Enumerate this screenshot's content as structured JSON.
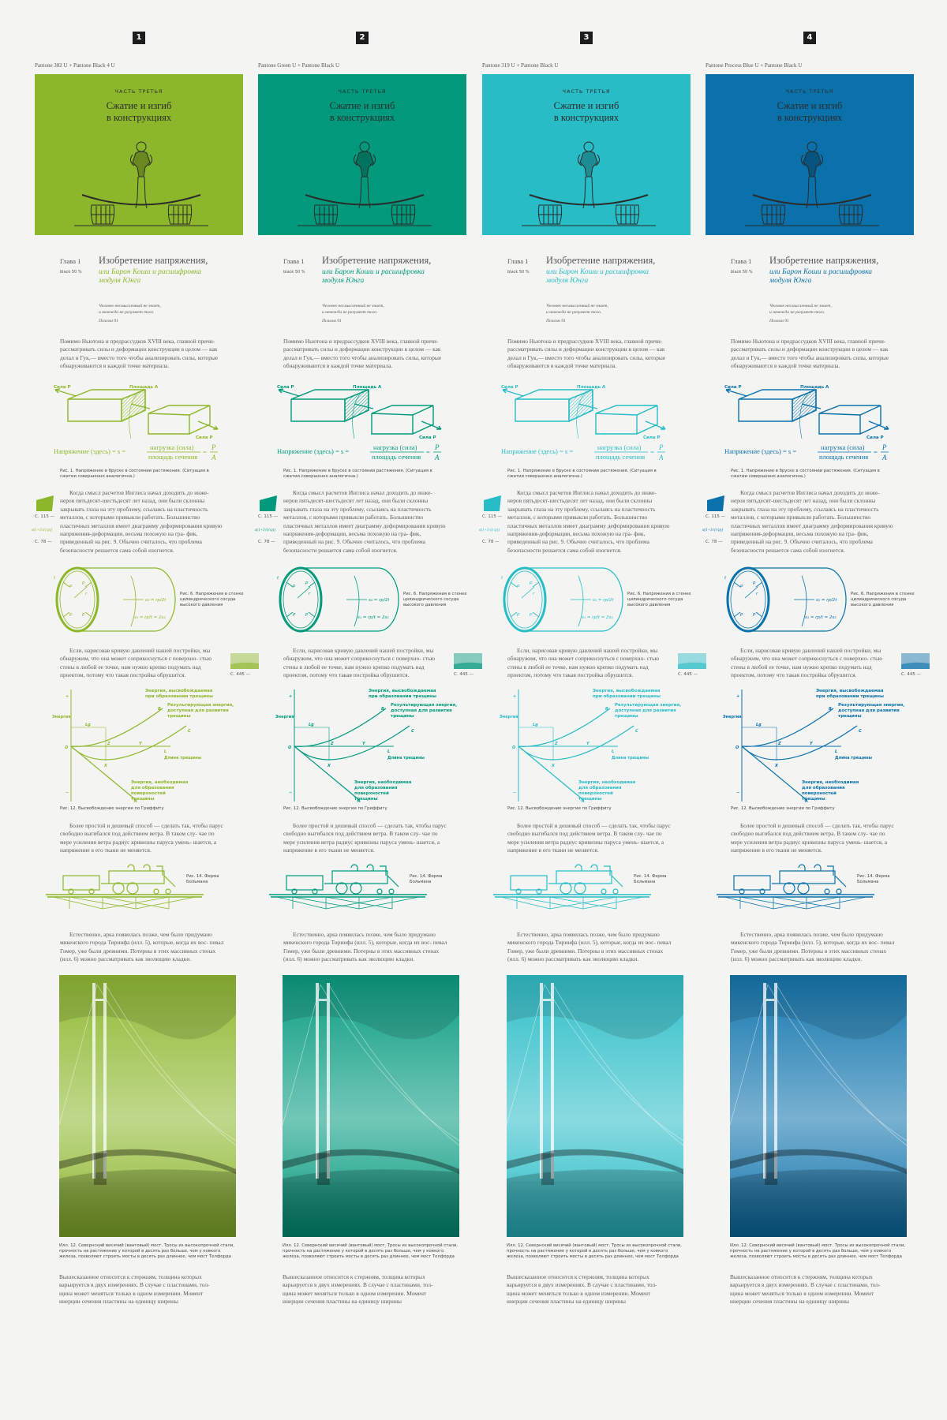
{
  "columns": [
    {
      "number": "1",
      "inks": "Pantone 382 U + Pantone Black 4 U",
      "color": "#8cb72b"
    },
    {
      "number": "2",
      "inks": "Pantone Green U + Pantone Black U",
      "color": "#00997c"
    },
    {
      "number": "3",
      "inks": "Pantone 319 U + Pantone Black U",
      "color": "#27bcc6"
    },
    {
      "number": "4",
      "inks": "Pantone Process Blue U + Pantone Black U",
      "color": "#0a71ab"
    }
  ],
  "cover": {
    "part": "ЧАСТЬ ТРЕТЬЯ",
    "title_line1": "Сжатие и изгиб",
    "title_line2": "в конструкциях"
  },
  "chapter": {
    "label": "Глава 1",
    "note": "black 50 %",
    "title": "Изобретение напряжения,",
    "subtitle": "или Барон Коши и расшифровка модуля Юнга"
  },
  "epigraph": {
    "line1": "Человек несмысленный не знает,",
    "line2": "и невежда не разумеет того.",
    "source": "Псалом 91"
  },
  "paragraphs": {
    "p1": "Помимо Ньютона и предрассудков XVIII века, главной причи- рассматривать силы и деформации конструкции в целом — как делал и Гук,— вместо того чтобы анализировать силы, которые обнаруживаются в каждой точке материала.",
    "p2": "Когда смысл расчетов Инглиса начал доходить до инже- неров пятьдесят-шестьдесят лет назад, они были склонны закрывать глаза на эту проблему, ссылаясь на пластичность металлов, с которыми привыкли работать. Большинство пластичных металлов имеет диаграмму деформирования кривую напряжения-деформации, весьма похожую на гра- фик, приведенный на рис. 9. Обычно считалось, что проблема безопасности решается сама собой изогнется.",
    "p3": "Если, нарисовав кривую давлений нашей постройки, мы обнаружим, что она может соприкоснуться с поверхно- стью стены в любой ее точке, нам нужно крепко подумать над проектом, потому что такая постройка обрушится.",
    "p4": "Более простой и дешевый способ — сделать так, чтобы парус свободно выгибался под действием ветра. В таком слу- чае по мере усиления ветра радиус кривизны паруса умень- шается, а напряжение в его ткани не меняется.",
    "p5": "Естественно, арка появилась позже, чем было придумано микенского города Тиринфа (илл. 5), которые, когда их вос- певал Гомер, уже были древними. Потерны в этих массивных стенах (илл. 6) можно рассматривать как эволюцию кладки.",
    "p6": "Вышесказанное относится к стержням, толщина которых варьируется в двух измерениях. В случае с пластинами, тол- щина может меняться только в одном измерении. Момент инерции сечения пластины на единицу ширины"
  },
  "fig1": {
    "force_left": "Сила P",
    "area": "Площадь A",
    "force_right": "Сила P",
    "formula_lhs": "Напряжение (здесь) = s =",
    "numerator": "нагрузка (сила)",
    "denominator": "площадь сечения",
    "eq": "=",
    "p": "P",
    "a": "A",
    "caption": "Рис. 1. Напряжение в бруске в состоянии растяжения. (Ситуация в сжатии совершенно аналогична.)"
  },
  "margin": {
    "ref1": "С. 115 —",
    "formula": "σ(1+3√(r/ρ))",
    "ref2": "С. 78 —",
    "ref3": "С. 445 —"
  },
  "fig6": {
    "t": "t",
    "p": "p",
    "r": "r",
    "s2": "s₂ = rp/2t",
    "s1": "s₁ = rp/t = 2s₂",
    "caption": "Рис. 6. Напряжения в стенке цилиндрического сосуда высокого давления"
  },
  "fig12": {
    "plus": "+",
    "minus": "−",
    "energy": "Энергия",
    "origin": "O",
    "curve_b": "Энергия, высвобождаемая при образовании трещины",
    "b": "B",
    "curve_c": "Результирующая энергия, доступная для развития трещины",
    "c": "C",
    "lg": "Lg",
    "z": "Z",
    "y": "Y",
    "x": "X",
    "l": "L",
    "length": "Длина трещины",
    "curve_a": "Энергия, необходимая для образования поверхностей трещины",
    "a": "A",
    "caption": "Рис. 12. Высвобождение энергии по Гриффиту"
  },
  "fig14": {
    "caption": "Рис. 14. Ферма Больмана"
  },
  "photo": {
    "caption": "Илл. 12. Севернский висячий (вантовый) мост. Тросы из высокопрочной стали, прочность на растяжение у которой в десять раз больше, чем у ковкого железа, позволяют строить мосты в десять раз длиннее, чем мост Телфорда"
  }
}
